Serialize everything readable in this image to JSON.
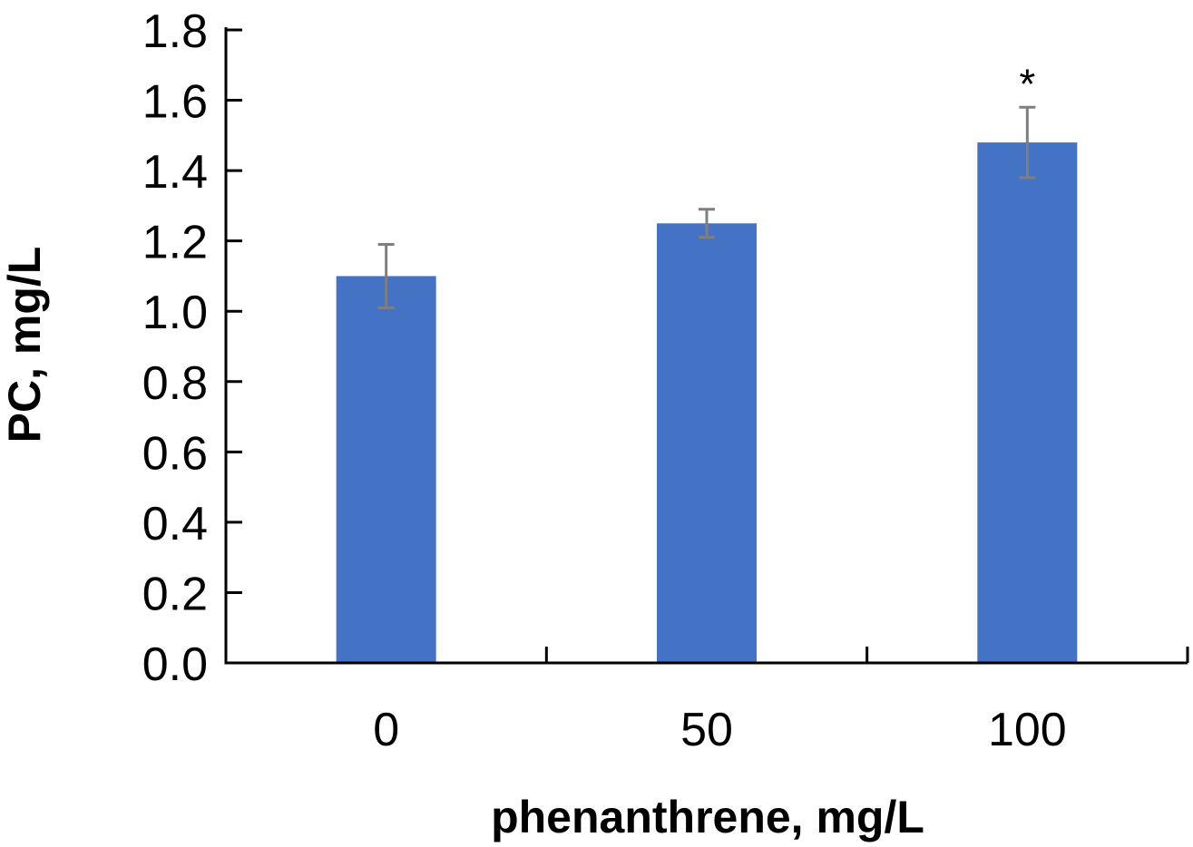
{
  "chart_data": {
    "type": "bar",
    "title": "",
    "xlabel": "phenanthrene, mg/L",
    "ylabel": "PC, mg/L",
    "categories": [
      "0",
      "50",
      "100"
    ],
    "values": [
      1.1,
      1.25,
      1.48
    ],
    "errors": [
      0.09,
      0.04,
      0.1
    ],
    "annotations": [
      "",
      "",
      "*"
    ],
    "ylim": [
      0,
      1.8
    ],
    "yticks": [
      "0.0",
      "0.2",
      "0.4",
      "0.6",
      "0.8",
      "1.0",
      "1.2",
      "1.4",
      "1.6",
      "1.8"
    ],
    "ytick_values": [
      0,
      0.2,
      0.4,
      0.6,
      0.8,
      1.0,
      1.2,
      1.4,
      1.6,
      1.8
    ],
    "grid": false,
    "legend": "none",
    "colors": {
      "bar": "#4472C4",
      "error_bar": "#7F7F7F",
      "axis": "#000000"
    }
  }
}
